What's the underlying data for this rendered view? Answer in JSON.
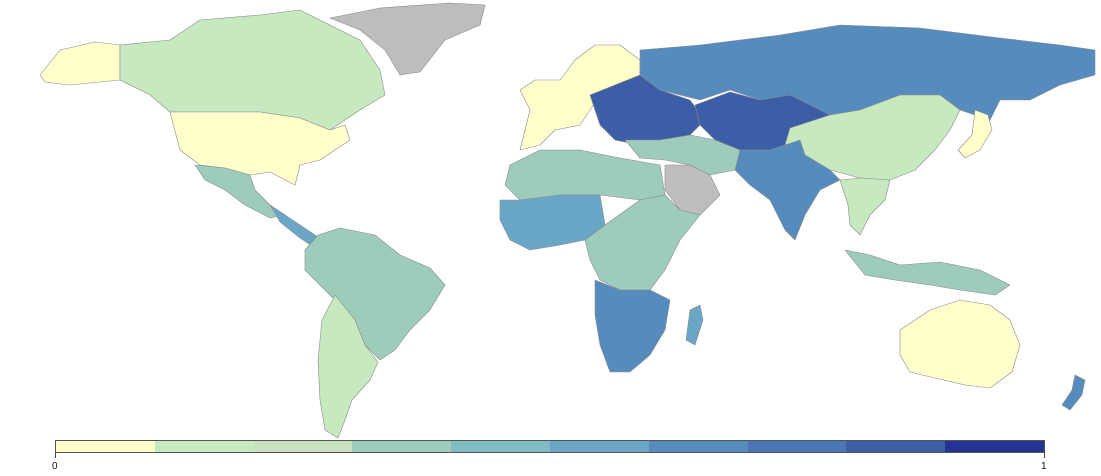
{
  "legend": {
    "min_label": "0",
    "max_label": "1",
    "colors": [
      "#ffffcc",
      "#c7e9c0",
      "#c7e2bf",
      "#9dcdba",
      "#7fbcc4",
      "#6aa7c7",
      "#568cbd",
      "#4a76b5",
      "#3b5ea6",
      "#253494"
    ]
  },
  "palette": {
    "background": "#ffffff",
    "no_data": "#bdbdbd",
    "border": "#8a8a8a"
  },
  "regions": [
    {
      "name": "alaska",
      "fill": "#ffffcc"
    },
    {
      "name": "canada",
      "fill": "#c7e9c0"
    },
    {
      "name": "usa",
      "fill": "#ffffcc"
    },
    {
      "name": "greenland",
      "fill": "#bdbdbd"
    },
    {
      "name": "mexico",
      "fill": "#9dcdba"
    },
    {
      "name": "central-america",
      "fill": "#6aa7c7"
    },
    {
      "name": "south-america",
      "fill": "#9dcdba"
    },
    {
      "name": "argentina",
      "fill": "#c7e9c0"
    },
    {
      "name": "western-europe",
      "fill": "#ffffcc"
    },
    {
      "name": "eastern-europe",
      "fill": "#3b5ea6"
    },
    {
      "name": "russia",
      "fill": "#568cbd"
    },
    {
      "name": "central-asia",
      "fill": "#3b5ea6"
    },
    {
      "name": "china",
      "fill": "#c7e9c0"
    },
    {
      "name": "india",
      "fill": "#568cbd"
    },
    {
      "name": "middle-east",
      "fill": "#9dcdba"
    },
    {
      "name": "arabia",
      "fill": "#bdbdbd"
    },
    {
      "name": "north-africa",
      "fill": "#9dcdba"
    },
    {
      "name": "west-africa",
      "fill": "#6aa7c7"
    },
    {
      "name": "central-africa",
      "fill": "#9dcdba"
    },
    {
      "name": "southern-africa",
      "fill": "#568cbd"
    },
    {
      "name": "southeast-asia",
      "fill": "#c7e9c0"
    },
    {
      "name": "indonesia",
      "fill": "#9dcdba"
    },
    {
      "name": "australia",
      "fill": "#ffffcc"
    },
    {
      "name": "new-zealand",
      "fill": "#568cbd"
    },
    {
      "name": "madagascar",
      "fill": "#6aa7c7"
    },
    {
      "name": "japan",
      "fill": "#ffffcc"
    }
  ]
}
